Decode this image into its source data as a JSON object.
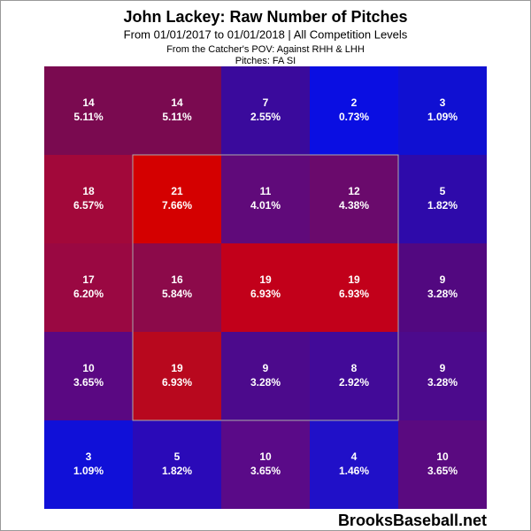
{
  "chart_data": {
    "type": "heatmap",
    "title": "John Lackey: Raw Number of Pitches",
    "subtitle": "From 01/01/2017 to 01/01/2018 | All Competition Levels",
    "pov": "From the Catcher's POV:  Against RHH & LHH",
    "pitches": "Pitches:  FA  SI",
    "watermark": "BrooksBaseball.net",
    "rows": [
      {
        "values": [
          14,
          14,
          7,
          2,
          3
        ],
        "percents": [
          5.11,
          5.11,
          2.55,
          0.73,
          1.09
        ],
        "percent_labels": [
          "5.11%",
          "5.11%",
          "2.55%",
          "0.73%",
          "1.09%"
        ],
        "colors": [
          "#7a0a50",
          "#7a0a50",
          "#3a0a9c",
          "#0a0ee2",
          "#1010d2"
        ]
      },
      {
        "values": [
          18,
          21,
          11,
          12,
          5
        ],
        "percents": [
          6.57,
          7.66,
          4.01,
          4.38,
          1.82
        ],
        "percent_labels": [
          "6.57%",
          "7.66%",
          "4.01%",
          "4.38%",
          "1.82%"
        ],
        "colors": [
          "#a2083a",
          "#d40000",
          "#600a7a",
          "#6a0a6c",
          "#2e0aaa"
        ]
      },
      {
        "values": [
          17,
          16,
          19,
          19,
          9
        ],
        "percents": [
          6.2,
          5.84,
          6.93,
          6.93,
          3.28
        ],
        "percent_labels": [
          "6.20%",
          "5.84%",
          "6.93%",
          "6.93%",
          "3.28%"
        ],
        "colors": [
          "#9a0842",
          "#8c0a4a",
          "#c2001a",
          "#c2001a",
          "#520880"
        ]
      },
      {
        "values": [
          10,
          19,
          9,
          8,
          9
        ],
        "percents": [
          3.65,
          6.93,
          3.28,
          2.92,
          3.28
        ],
        "percent_labels": [
          "3.65%",
          "6.93%",
          "3.28%",
          "2.92%",
          "3.28%"
        ],
        "colors": [
          "#5a0882",
          "#b8081e",
          "#4c0a8c",
          "#420a98",
          "#4c0a8c"
        ]
      },
      {
        "values": [
          3,
          5,
          10,
          4,
          10
        ],
        "percents": [
          1.09,
          1.82,
          3.65,
          1.46,
          3.65
        ],
        "percent_labels": [
          "1.09%",
          "1.82%",
          "3.65%",
          "1.46%",
          "3.65%"
        ],
        "colors": [
          "#1010d8",
          "#2a0ab8",
          "#5a0a88",
          "#2010c8",
          "#5a0a80"
        ]
      }
    ]
  }
}
